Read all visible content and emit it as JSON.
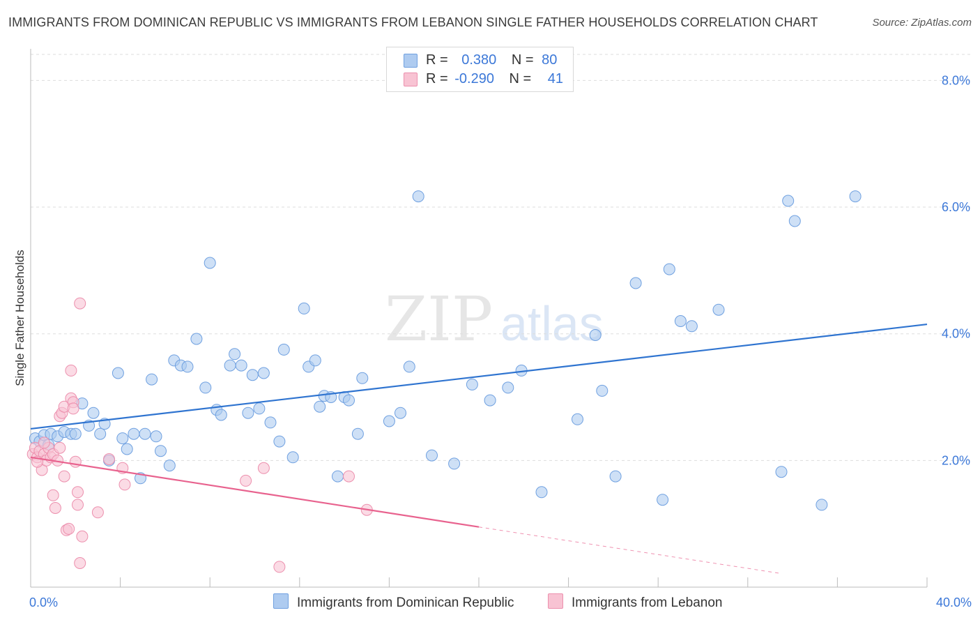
{
  "title": "IMMIGRANTS FROM DOMINICAN REPUBLIC VS IMMIGRANTS FROM LEBANON SINGLE FATHER HOUSEHOLDS CORRELATION CHART",
  "source": "Source: ZipAtlas.com",
  "watermark": {
    "zip": "ZIP",
    "atlas": "atlas"
  },
  "legend": {
    "rows": [
      {
        "r_label": "R =",
        "r_value": "0.380",
        "n_label": "N =",
        "n_value": "80",
        "color": "#aecbf0",
        "border": "#6fa0e0"
      },
      {
        "r_label": "R =",
        "r_value": "-0.290",
        "n_label": "N =",
        "n_value": "41",
        "color": "#f8c3d3",
        "border": "#ec8fad"
      }
    ]
  },
  "bottom_legend": [
    {
      "label": "Immigrants from Dominican Republic",
      "color": "#aecbf0",
      "border": "#6fa0e0"
    },
    {
      "label": "Immigrants from Lebanon",
      "color": "#f8c3d3",
      "border": "#ec8fad"
    }
  ],
  "chart_data": {
    "type": "scatter",
    "title": "IMMIGRANTS FROM DOMINICAN REPUBLIC VS IMMIGRANTS FROM LEBANON SINGLE FATHER HOUSEHOLDS CORRELATION CHART",
    "xlabel": "",
    "ylabel": "Single Father Households",
    "xlim": [
      0,
      40
    ],
    "ylim": [
      0,
      8.5
    ],
    "x_tick_labels": [
      "0.0%",
      "40.0%"
    ],
    "y_ticks": [
      2,
      4,
      6,
      8
    ],
    "y_tick_labels": [
      "2.0%",
      "4.0%",
      "6.0%",
      "8.0%"
    ],
    "grid": true,
    "series": [
      {
        "name": "Immigrants from Dominican Republic",
        "color": "#aecbf0",
        "stroke": "#6fa0e0",
        "trend": {
          "x": [
            0,
            40
          ],
          "y": [
            2.5,
            4.15
          ],
          "color": "#2f74d0"
        },
        "points": [
          [
            0.2,
            2.35
          ],
          [
            0.4,
            2.3
          ],
          [
            0.6,
            2.4
          ],
          [
            0.8,
            2.25
          ],
          [
            0.9,
            2.42
          ],
          [
            1.2,
            2.38
          ],
          [
            1.5,
            2.45
          ],
          [
            1.8,
            2.42
          ],
          [
            2.0,
            2.42
          ],
          [
            2.3,
            2.9
          ],
          [
            2.6,
            2.55
          ],
          [
            2.8,
            2.75
          ],
          [
            3.1,
            2.42
          ],
          [
            3.3,
            2.58
          ],
          [
            3.5,
            2.0
          ],
          [
            3.9,
            3.38
          ],
          [
            4.1,
            2.35
          ],
          [
            4.3,
            2.18
          ],
          [
            4.6,
            2.42
          ],
          [
            4.9,
            1.72
          ],
          [
            5.1,
            2.42
          ],
          [
            5.4,
            3.28
          ],
          [
            5.6,
            2.38
          ],
          [
            5.8,
            2.15
          ],
          [
            6.2,
            1.92
          ],
          [
            6.4,
            3.58
          ],
          [
            6.7,
            3.5
          ],
          [
            7.0,
            3.48
          ],
          [
            7.4,
            3.92
          ],
          [
            7.8,
            3.15
          ],
          [
            8.0,
            5.12
          ],
          [
            8.3,
            2.8
          ],
          [
            8.5,
            2.72
          ],
          [
            8.9,
            3.5
          ],
          [
            9.1,
            3.68
          ],
          [
            9.4,
            3.5
          ],
          [
            9.7,
            2.75
          ],
          [
            9.9,
            3.35
          ],
          [
            10.2,
            2.82
          ],
          [
            10.4,
            3.38
          ],
          [
            10.7,
            2.6
          ],
          [
            11.1,
            2.3
          ],
          [
            11.3,
            3.75
          ],
          [
            11.7,
            2.05
          ],
          [
            12.2,
            4.4
          ],
          [
            12.4,
            3.48
          ],
          [
            12.7,
            3.58
          ],
          [
            12.9,
            2.85
          ],
          [
            13.1,
            3.02
          ],
          [
            13.4,
            3.0
          ],
          [
            13.7,
            1.75
          ],
          [
            14.0,
            3.0
          ],
          [
            14.2,
            2.95
          ],
          [
            14.6,
            2.42
          ],
          [
            14.8,
            3.3
          ],
          [
            16.0,
            2.62
          ],
          [
            16.5,
            2.75
          ],
          [
            16.9,
            3.48
          ],
          [
            17.3,
            6.17
          ],
          [
            17.9,
            2.08
          ],
          [
            18.9,
            1.95
          ],
          [
            19.7,
            3.2
          ],
          [
            20.5,
            2.95
          ],
          [
            21.3,
            3.15
          ],
          [
            21.9,
            3.42
          ],
          [
            22.8,
            1.5
          ],
          [
            24.4,
            2.65
          ],
          [
            25.2,
            3.98
          ],
          [
            25.5,
            3.1
          ],
          [
            26.1,
            1.75
          ],
          [
            27.0,
            4.8
          ],
          [
            28.2,
            1.38
          ],
          [
            28.5,
            5.02
          ],
          [
            29.0,
            4.2
          ],
          [
            29.5,
            4.12
          ],
          [
            30.7,
            4.38
          ],
          [
            33.5,
            1.82
          ],
          [
            33.8,
            6.1
          ],
          [
            34.1,
            5.78
          ],
          [
            35.3,
            1.3
          ],
          [
            36.8,
            6.17
          ]
        ]
      },
      {
        "name": "Immigrants from Lebanon",
        "color": "#f8c3d3",
        "stroke": "#ec8fad",
        "trend": {
          "x": [
            0,
            20
          ],
          "y": [
            2.05,
            0.95
          ],
          "dashed_to": [
            33.4,
            0.22
          ],
          "color": "#e8628e"
        },
        "points": [
          [
            0.1,
            2.1
          ],
          [
            0.2,
            2.2
          ],
          [
            0.3,
            2.05
          ],
          [
            0.4,
            2.15
          ],
          [
            0.5,
            1.85
          ],
          [
            0.6,
            2.1
          ],
          [
            0.7,
            2.0
          ],
          [
            0.8,
            2.2
          ],
          [
            0.9,
            2.05
          ],
          [
            1.0,
            1.45
          ],
          [
            1.0,
            2.1
          ],
          [
            1.1,
            1.25
          ],
          [
            1.2,
            2.0
          ],
          [
            1.3,
            2.2
          ],
          [
            1.3,
            2.7
          ],
          [
            1.4,
            2.75
          ],
          [
            1.5,
            1.75
          ],
          [
            1.5,
            2.85
          ],
          [
            1.6,
            0.9
          ],
          [
            1.7,
            0.92
          ],
          [
            1.8,
            2.98
          ],
          [
            1.8,
            3.42
          ],
          [
            1.9,
            2.92
          ],
          [
            1.9,
            2.82
          ],
          [
            2.0,
            1.98
          ],
          [
            2.1,
            1.3
          ],
          [
            2.1,
            1.5
          ],
          [
            2.2,
            0.38
          ],
          [
            2.2,
            4.48
          ],
          [
            2.3,
            0.8
          ],
          [
            3.0,
            1.18
          ],
          [
            3.5,
            2.02
          ],
          [
            4.1,
            1.88
          ],
          [
            4.2,
            1.62
          ],
          [
            9.6,
            1.68
          ],
          [
            10.4,
            1.88
          ],
          [
            11.1,
            0.32
          ],
          [
            14.2,
            1.75
          ],
          [
            15.0,
            1.22
          ],
          [
            0.6,
            2.28
          ],
          [
            0.3,
            1.98
          ]
        ]
      }
    ]
  }
}
